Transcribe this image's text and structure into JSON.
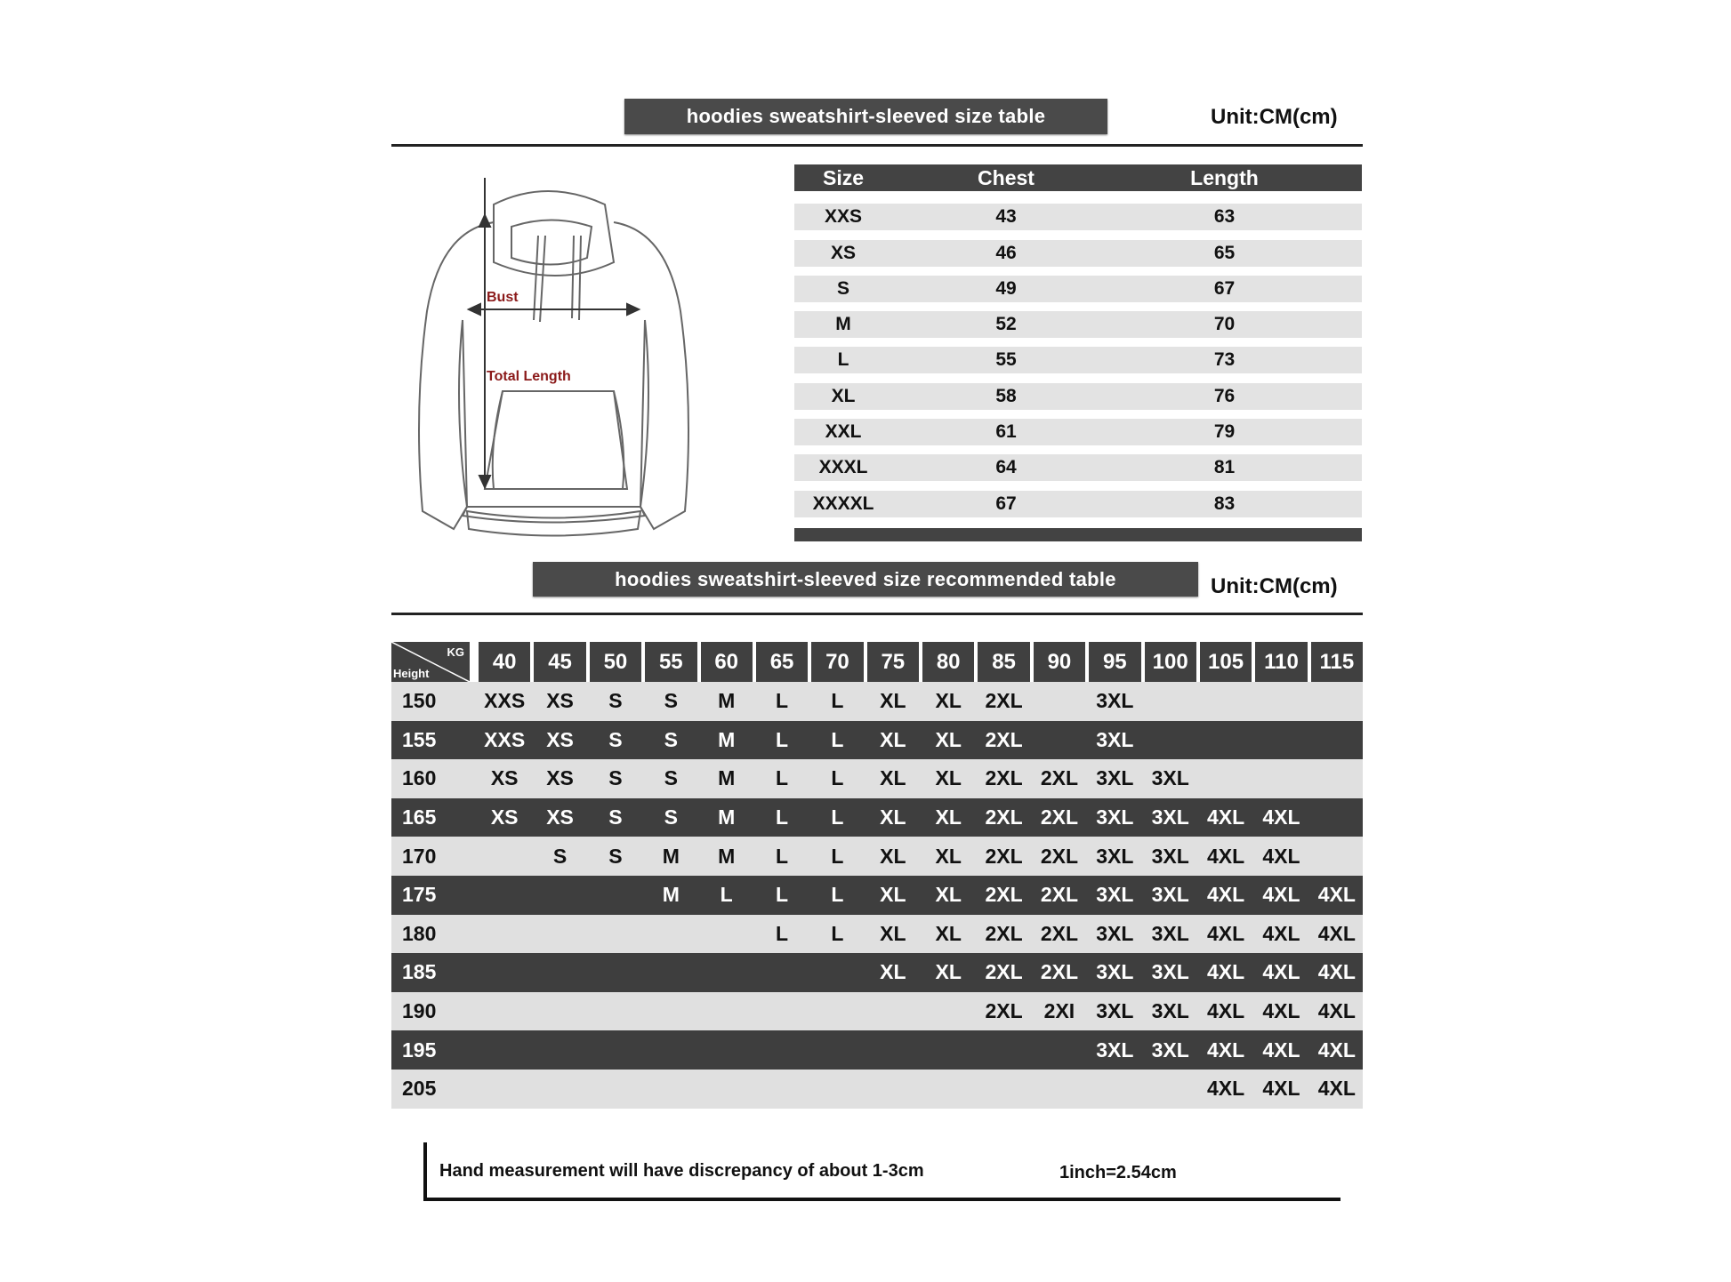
{
  "size_chart": {
    "title": "hoodies sweatshirt-sleeved size  table",
    "unit": "Unit:CM(cm)",
    "diagram_labels": {
      "bust": "Bust",
      "total_length": "Total Length"
    },
    "columns": [
      "Size",
      "Chest",
      "Length"
    ],
    "rows": [
      [
        "XXS",
        "43",
        "63"
      ],
      [
        "XS",
        "46",
        "65"
      ],
      [
        "S",
        "49",
        "67"
      ],
      [
        "M",
        "52",
        "70"
      ],
      [
        "L",
        "55",
        "73"
      ],
      [
        "XL",
        "58",
        "76"
      ],
      [
        "XXL",
        "61",
        "79"
      ],
      [
        "XXXL",
        "64",
        "81"
      ],
      [
        "XXXXL",
        "67",
        "83"
      ]
    ]
  },
  "recommended_chart": {
    "title": "hoodies sweatshirt-sleeved size recommended table",
    "unit": "Unit:CM(cm)",
    "corner": {
      "kg": "KG",
      "height": "Height"
    },
    "weights": [
      "40",
      "45",
      "50",
      "55",
      "60",
      "65",
      "70",
      "75",
      "80",
      "85",
      "90",
      "95",
      "100",
      "105",
      "110",
      "115"
    ],
    "rows": [
      {
        "height": "150",
        "sizes": [
          "XXS",
          "XS",
          "S",
          "S",
          "M",
          "L",
          "L",
          "XL",
          "XL",
          "2XL",
          "",
          "3XL",
          "",
          "",
          "",
          ""
        ]
      },
      {
        "height": "155",
        "sizes": [
          "XXS",
          "XS",
          "S",
          "S",
          "M",
          "L",
          "L",
          "XL",
          "XL",
          "2XL",
          "",
          "3XL",
          "",
          "",
          "",
          ""
        ]
      },
      {
        "height": "160",
        "sizes": [
          "XS",
          "XS",
          "S",
          "S",
          "M",
          "L",
          "L",
          "XL",
          "XL",
          "2XL",
          "2XL",
          "3XL",
          "3XL",
          "",
          "",
          ""
        ]
      },
      {
        "height": "165",
        "sizes": [
          "XS",
          "XS",
          "S",
          "S",
          "M",
          "L",
          "L",
          "XL",
          "XL",
          "2XL",
          "2XL",
          "3XL",
          "3XL",
          "4XL",
          "4XL",
          ""
        ]
      },
      {
        "height": "170",
        "sizes": [
          "",
          "S",
          "S",
          "M",
          "M",
          "L",
          "L",
          "XL",
          "XL",
          "2XL",
          "2XL",
          "3XL",
          "3XL",
          "4XL",
          "4XL",
          ""
        ]
      },
      {
        "height": "175",
        "sizes": [
          "",
          "",
          "",
          "M",
          "L",
          "L",
          "L",
          "XL",
          "XL",
          "2XL",
          "2XL",
          "3XL",
          "3XL",
          "4XL",
          "4XL",
          "4XL"
        ]
      },
      {
        "height": "180",
        "sizes": [
          "",
          "",
          "",
          "",
          "",
          "L",
          "L",
          "XL",
          "XL",
          "2XL",
          "2XL",
          "3XL",
          "3XL",
          "4XL",
          "4XL",
          "4XL"
        ]
      },
      {
        "height": "185",
        "sizes": [
          "",
          "",
          "",
          "",
          "",
          "",
          "",
          "XL",
          "XL",
          "2XL",
          "2XL",
          "3XL",
          "3XL",
          "4XL",
          "4XL",
          "4XL"
        ]
      },
      {
        "height": "190",
        "sizes": [
          "",
          "",
          "",
          "",
          "",
          "",
          "",
          "",
          "",
          "2XL",
          "2XI",
          "3XL",
          "3XL",
          "4XL",
          "4XL",
          "4XL"
        ]
      },
      {
        "height": "195",
        "sizes": [
          "",
          "",
          "",
          "",
          "",
          "",
          "",
          "",
          "",
          "",
          "",
          "3XL",
          "3XL",
          "4XL",
          "4XL",
          "4XL"
        ]
      },
      {
        "height": "205",
        "sizes": [
          "",
          "",
          "",
          "",
          "",
          "",
          "",
          "",
          "",
          "",
          "",
          "",
          "",
          "4XL",
          "4XL",
          "4XL"
        ]
      }
    ]
  },
  "footer": {
    "note": "Hand measurement will have discrepancy of about  1-3cm",
    "conversion": "1inch=2.54cm"
  },
  "colors": {
    "dark_band": "#404040",
    "light_band": "#e0e0e0",
    "label_red": "#8b1a1a"
  }
}
